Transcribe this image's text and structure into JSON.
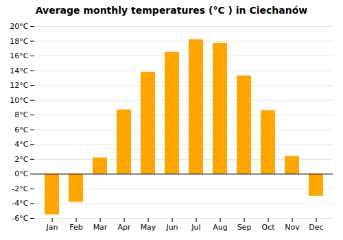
{
  "chart_data": {
    "type": "bar",
    "title": "Average monthly temperatures (°C ) in Ciechanów",
    "categories": [
      "Jan",
      "Feb",
      "Mar",
      "Apr",
      "May",
      "Jun",
      "Jul",
      "Aug",
      "Sep",
      "Oct",
      "Nov",
      "Dec"
    ],
    "values": [
      -5.5,
      -3.8,
      2.2,
      8.7,
      13.8,
      16.5,
      18.2,
      17.7,
      13.3,
      8.6,
      2.4,
      -3.0
    ],
    "color": "#FFA500",
    "ylim": [
      -6,
      20
    ],
    "yticks": [
      {
        "value": -6,
        "label": "-6°C"
      },
      {
        "value": -4,
        "label": "-4°C"
      },
      {
        "value": -2,
        "label": "-2°C"
      },
      {
        "value": 0,
        "label": "0°C"
      },
      {
        "value": 2,
        "label": "2°C"
      },
      {
        "value": 4,
        "label": "4°C"
      },
      {
        "value": 6,
        "label": "6°C"
      },
      {
        "value": 8,
        "label": "8°C"
      },
      {
        "value": 10,
        "label": "10°C"
      },
      {
        "value": 12,
        "label": "12°C"
      },
      {
        "value": 14,
        "label": "14°C"
      },
      {
        "value": 16,
        "label": "16°C"
      },
      {
        "value": 18,
        "label": "18°C"
      },
      {
        "value": 20,
        "label": "20°C"
      }
    ],
    "grid": true
  }
}
